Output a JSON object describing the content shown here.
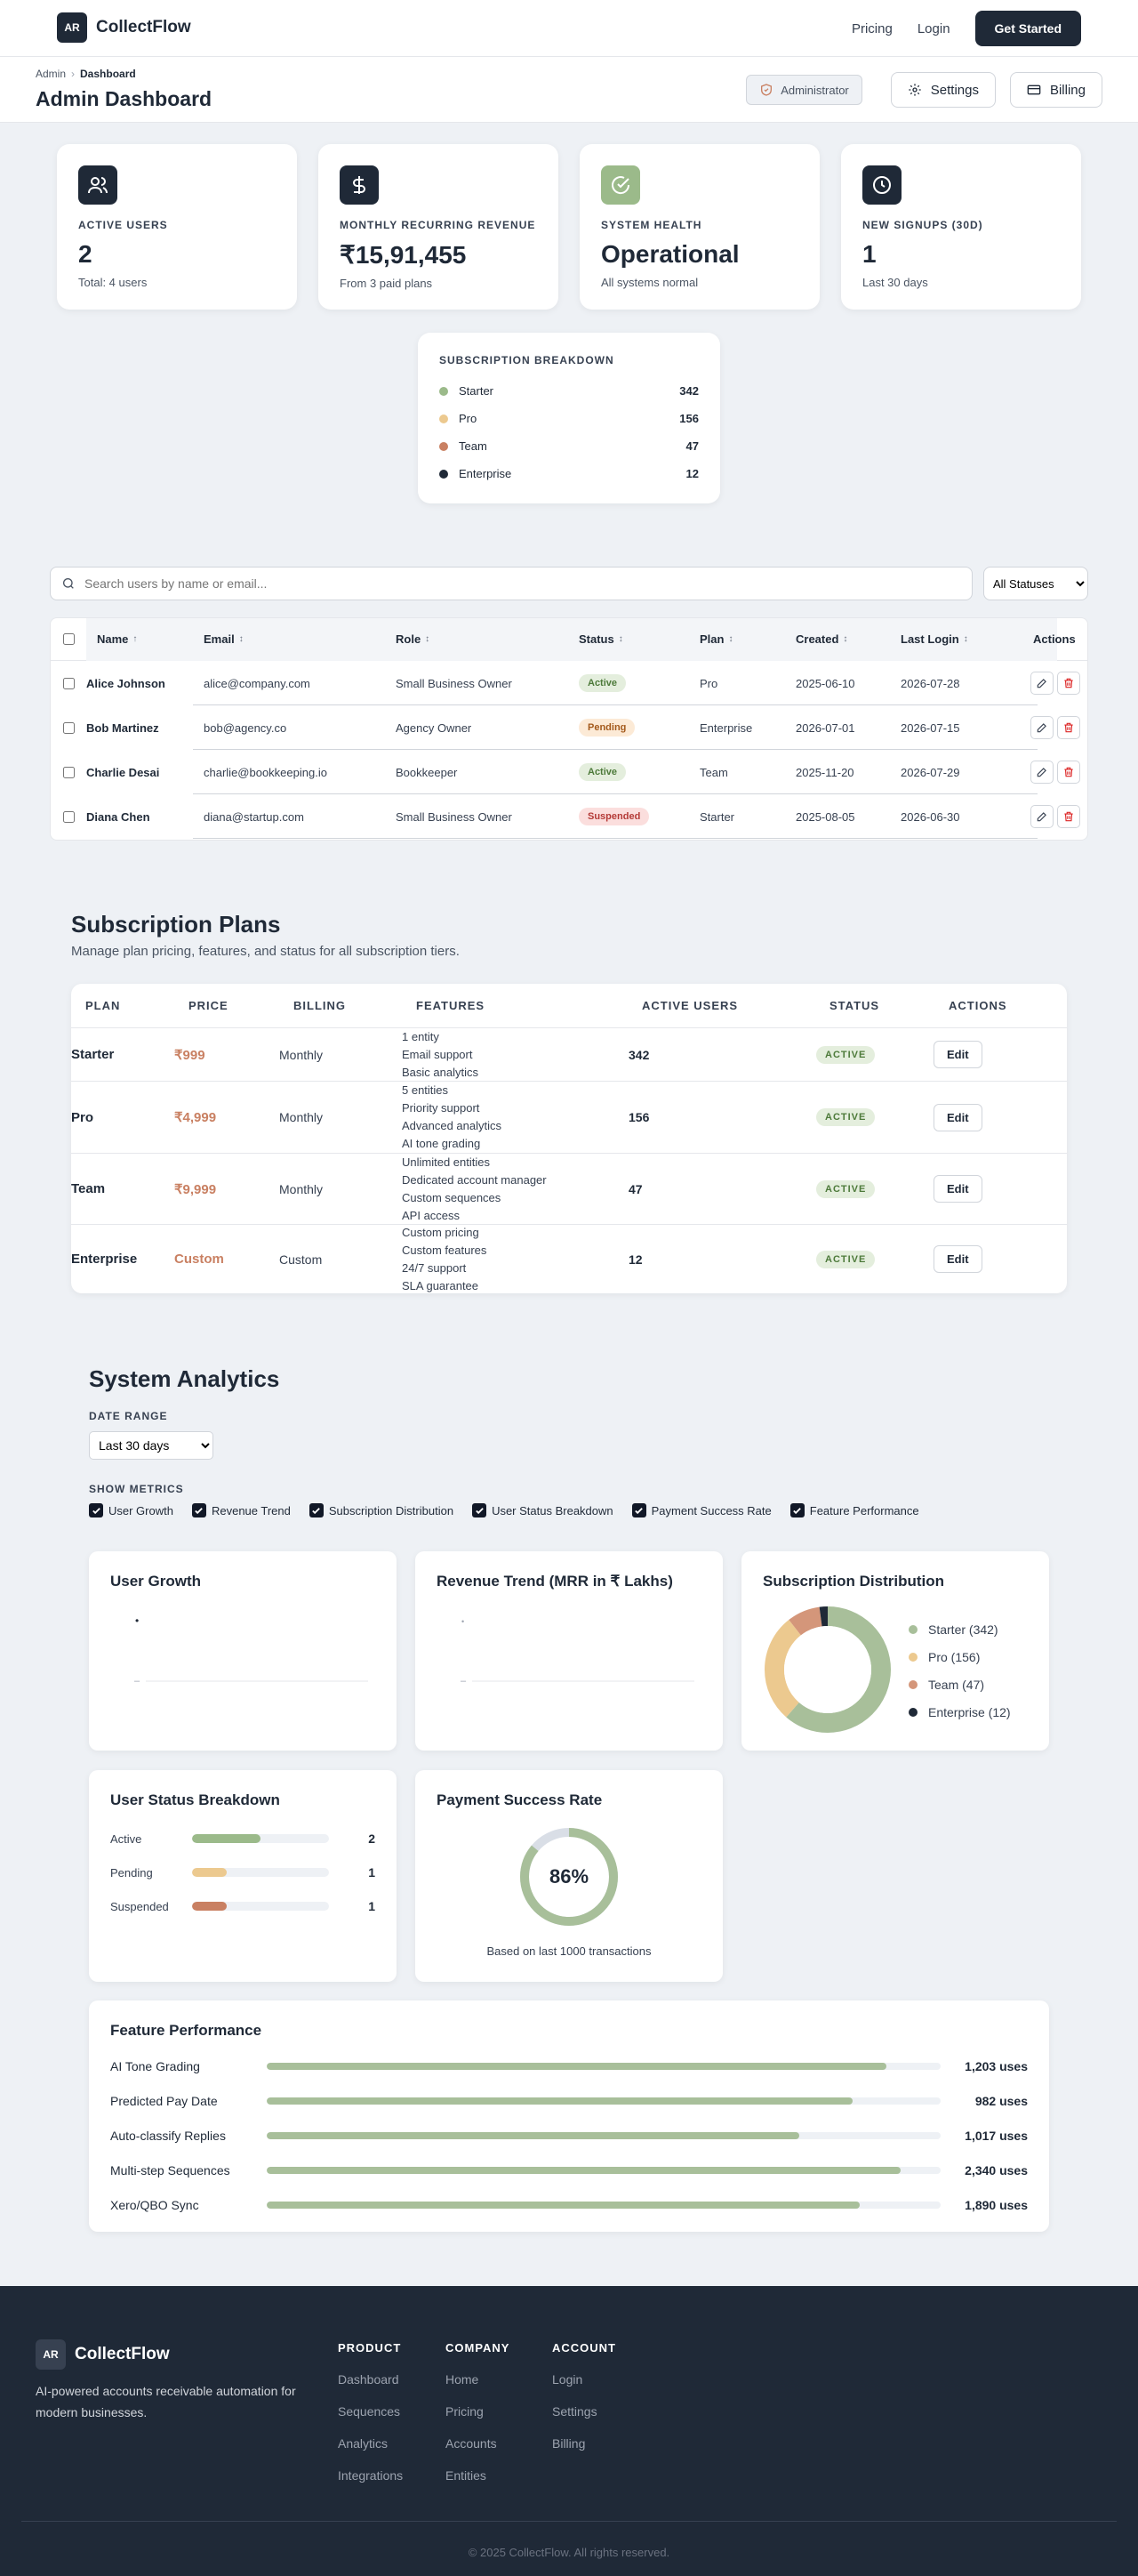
{
  "brand": {
    "initials": "AR",
    "name": "CollectFlow"
  },
  "nav": {
    "pricing": "Pricing",
    "login": "Login",
    "cta": "Get Started"
  },
  "subheader": {
    "breadcrumb": [
      "Admin",
      "Dashboard"
    ],
    "title": "Admin Dashboard",
    "role_badge": "Administrator",
    "settings": "Settings",
    "billing": "Billing"
  },
  "stats": [
    {
      "label": "ACTIVE USERS",
      "value": "2",
      "sub": "Total: 4 users",
      "icon": "users-icon"
    },
    {
      "label": "MONTHLY RECURRING REVENUE",
      "value": "₹15,91,455",
      "sub": "From 3 paid plans",
      "icon": "dollar-icon"
    },
    {
      "label": "SYSTEM HEALTH",
      "value": "Operational",
      "sub": "All systems normal",
      "icon": "check-circle-icon"
    },
    {
      "label": "NEW SIGNUPS (30D)",
      "value": "1",
      "sub": "Last 30 days",
      "icon": "clock-icon"
    }
  ],
  "breakdown": {
    "title": "SUBSCRIPTION BREAKDOWN",
    "items": [
      {
        "name": "Starter",
        "value": "342",
        "color": "#9bba8a"
      },
      {
        "name": "Pro",
        "value": "156",
        "color": "#ecc98f"
      },
      {
        "name": "Team",
        "value": "47",
        "color": "#c98062"
      },
      {
        "name": "Enterprise",
        "value": "12",
        "color": "#1f2937"
      }
    ]
  },
  "users": {
    "search_placeholder": "Search users by name or email...",
    "filter_value": "All Statuses",
    "headers": {
      "name": "Name",
      "email": "Email",
      "role": "Role",
      "status": "Status",
      "plan": "Plan",
      "created": "Created",
      "last_login": "Last Login",
      "actions": "Actions"
    },
    "arrows": {
      "up": "↑",
      "both": "↕"
    },
    "rows": [
      {
        "name": "Alice Johnson",
        "email": "alice@company.com",
        "role": "Small Business Owner",
        "status": "Active",
        "status_class": "active",
        "plan": "Pro",
        "created": "2025-06-10",
        "last_login": "2026-07-28"
      },
      {
        "name": "Bob Martinez",
        "email": "bob@agency.co",
        "role": "Agency Owner",
        "status": "Pending",
        "status_class": "pending",
        "plan": "Enterprise",
        "created": "2026-07-01",
        "last_login": "2026-07-15"
      },
      {
        "name": "Charlie Desai",
        "email": "charlie@bookkeeping.io",
        "role": "Bookkeeper",
        "status": "Active",
        "status_class": "active",
        "plan": "Team",
        "created": "2025-11-20",
        "last_login": "2026-07-29"
      },
      {
        "name": "Diana Chen",
        "email": "diana@startup.com",
        "role": "Small Business Owner",
        "status": "Suspended",
        "status_class": "suspended",
        "plan": "Starter",
        "created": "2025-08-05",
        "last_login": "2026-06-30"
      }
    ]
  },
  "plans": {
    "title": "Subscription Plans",
    "subtitle": "Manage plan pricing, features, and status for all subscription tiers.",
    "headers": {
      "plan": "PLAN",
      "price": "PRICE",
      "billing": "BILLING",
      "features": "FEATURES",
      "active_users": "ACTIVE USERS",
      "status": "STATUS",
      "actions": "ACTIONS"
    },
    "edit_label": "Edit",
    "rows": [
      {
        "plan": "Starter",
        "price": "₹999",
        "billing": "Monthly",
        "features": [
          "1 entity",
          "Email support",
          "Basic analytics"
        ],
        "active_users": "342",
        "status": "ACTIVE"
      },
      {
        "plan": "Pro",
        "price": "₹4,999",
        "billing": "Monthly",
        "features": [
          "5 entities",
          "Priority support",
          "Advanced analytics",
          "AI tone grading"
        ],
        "active_users": "156",
        "status": "ACTIVE"
      },
      {
        "plan": "Team",
        "price": "₹9,999",
        "billing": "Monthly",
        "features": [
          "Unlimited entities",
          "Dedicated account manager",
          "Custom sequences",
          "API access"
        ],
        "active_users": "47",
        "status": "ACTIVE"
      },
      {
        "plan": "Enterprise",
        "price": "Custom",
        "billing": "Custom",
        "features": [
          "Custom pricing",
          "Custom features",
          "24/7 support",
          "SLA guarantee"
        ],
        "active_users": "12",
        "status": "ACTIVE"
      }
    ]
  },
  "analytics": {
    "title": "System Analytics",
    "date_range_label": "DATE RANGE",
    "date_range_value": "Last 30 days",
    "metrics_label": "SHOW METRICS",
    "metrics": [
      "User Growth",
      "Revenue Trend",
      "Subscription Distribution",
      "User Status Breakdown",
      "Payment Success Rate",
      "Feature Performance"
    ],
    "user_growth": {
      "title": "User Growth",
      "tick_top": "•",
      "tick_bottom": "–"
    },
    "revenue_trend": {
      "title": "Revenue Trend (MRR in ₹ Lakhs)",
      "tick_top": "•",
      "tick_bottom": "–"
    },
    "subscription_distribution": {
      "title": "Subscription Distribution",
      "slices": [
        {
          "label": "Starter (342)",
          "value": 342,
          "color": "#a8bf9a"
        },
        {
          "label": "Pro (156)",
          "value": 156,
          "color": "#ecc98f"
        },
        {
          "label": "Team (47)",
          "value": 47,
          "color": "#d4967a"
        },
        {
          "label": "Enterprise (12)",
          "value": 12,
          "color": "#1f2937"
        }
      ]
    },
    "user_status": {
      "title": "User Status Breakdown",
      "items": [
        {
          "name": "Active",
          "count": "2",
          "fraction": 0.5,
          "color": "#9bba8a"
        },
        {
          "name": "Pending",
          "count": "1",
          "fraction": 0.25,
          "color": "#ecc98f"
        },
        {
          "name": "Suspended",
          "count": "1",
          "fraction": 0.25,
          "color": "#c98062"
        }
      ]
    },
    "payment": {
      "title": "Payment Success Rate",
      "value_text": "86%",
      "fraction": 0.86,
      "caption": "Based on last 1000 transactions"
    },
    "feature_performance": {
      "title": "Feature Performance",
      "items": [
        {
          "name": "AI Tone Grading",
          "uses": "1,203 uses",
          "fraction": 0.92
        },
        {
          "name": "Predicted Pay Date",
          "uses": "982 uses",
          "fraction": 0.87
        },
        {
          "name": "Auto-classify Replies",
          "uses": "1,017 uses",
          "fraction": 0.79
        },
        {
          "name": "Multi-step Sequences",
          "uses": "2,340 uses",
          "fraction": 0.94
        },
        {
          "name": "Xero/QBO Sync",
          "uses": "1,890 uses",
          "fraction": 0.88
        }
      ]
    }
  },
  "footer": {
    "description": "AI-powered accounts receivable automation for modern businesses.",
    "columns": [
      {
        "title": "PRODUCT",
        "items": [
          "Dashboard",
          "Sequences",
          "Analytics",
          "Integrations"
        ]
      },
      {
        "title": "COMPANY",
        "items": [
          "Home",
          "Pricing",
          "Accounts",
          "Entities"
        ]
      },
      {
        "title": "ACCOUNT",
        "items": [
          "Login",
          "Settings",
          "Billing"
        ]
      }
    ],
    "copyright": "© 2025 CollectFlow. All rights reserved."
  }
}
